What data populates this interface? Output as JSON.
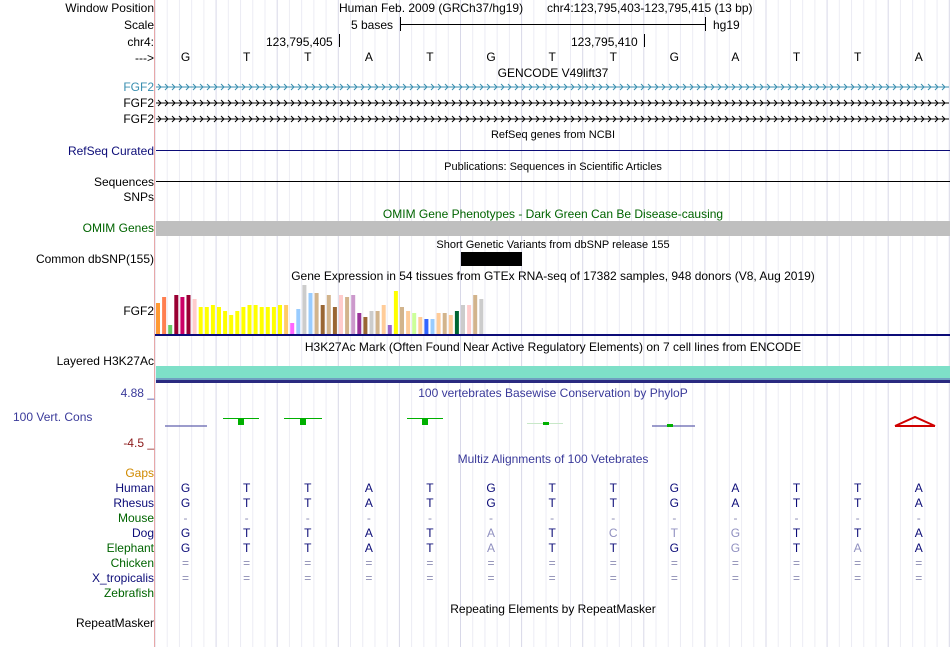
{
  "header": {
    "labels": {
      "window_position": "Window Position",
      "scale": "Scale",
      "chrom": "chr4:",
      "strand": "--->"
    },
    "assembly_text": "Human Feb. 2009 (GRCh37/hg19)",
    "position_text": "chr4:123,795,403-123,795,415 (13 bp)",
    "scale_text": "5 bases",
    "db_text": "hg19",
    "coord_1": "123,795,405",
    "coord_2": "123,795,410",
    "sequence": [
      "G",
      "T",
      "T",
      "A",
      "T",
      "G",
      "T",
      "T",
      "G",
      "A",
      "T",
      "T",
      "A"
    ]
  },
  "tracks": {
    "gencode": {
      "title": "GENCODE V49lift37",
      "genes": [
        "FGF2",
        "FGF2",
        "FGF2"
      ],
      "color_first": "#3a8fb0",
      "color": "#000000"
    },
    "refseq": {
      "title": "RefSeq genes from NCBI",
      "label": "RefSeq Curated",
      "color": "#0c0c78"
    },
    "publications": {
      "title": "Publications: Sequences in Scientific Articles",
      "label": "Sequences"
    },
    "snps": {
      "label": "SNPs"
    },
    "omim": {
      "title": "OMIM Gene Phenotypes - Dark Green Can Be Disease-causing",
      "label": "OMIM Genes",
      "color": "#006400",
      "bar_color": "#bfbfbf"
    },
    "dbsnp": {
      "title": "Short Genetic Variants from dbSNP release 155",
      "label": "Common dbSNP(155)"
    },
    "gtex": {
      "title": "Gene Expression in 54 tissues from GTEx RNA-seq of 17382 samples, 948 donors (V8, Aug 2019)",
      "gene": "FGF2",
      "tissue_colors": [
        "#ff9933",
        "#ff7f50",
        "#66cc66",
        "#990033",
        "#cc0066",
        "#990033",
        "#ffcccc",
        "#ffff00",
        "#ffff00",
        "#ffff00",
        "#ffff00",
        "#ffff00",
        "#ffff00",
        "#ffff00",
        "#ffff00",
        "#ffff00",
        "#ffff00",
        "#ffff00",
        "#ffff00",
        "#ffff00",
        "#ffff00",
        "#ffcc66",
        "#ff66ff",
        "#99ccff",
        "#cccccc",
        "#99ccff",
        "#d2b48c",
        "#996633",
        "#d2b48c",
        "#996633",
        "#ffcccc",
        "#d2b48c",
        "#cc99cc",
        "#993399",
        "#996633",
        "#cccccc",
        "#d2b48c",
        "#ffcc99",
        "#9966cc",
        "#ffff00",
        "#d2b48c",
        "#ffcc99",
        "#ccff99",
        "#ffcc99",
        "#3366ff",
        "#99ccff",
        "#ffcc99",
        "#d2b48c",
        "#ffcc99",
        "#006633",
        "#cccccc",
        "#ffcccc",
        "#d2b48c",
        "#cccccc"
      ]
    },
    "h3k27ac": {
      "title": "H3K27Ac Mark (Often Found Near Active Regulatory Elements) on 7 cell lines from ENCODE",
      "label": "Layered H3K27Ac",
      "band_color": "#7ee0c8",
      "line_color": "#2a2a80"
    },
    "phylop": {
      "title": "100 vertebrates Basewise Conservation by PhyloP",
      "label": "100 Vert. Cons",
      "max_label": "4.88 _",
      "min_label": "-4.5 _",
      "pos_color": "#00b000",
      "neg_color": "#d00000",
      "label_color": "#3a3a9a"
    },
    "multiz": {
      "title": "Multiz Alignments of 100 Vetebrates",
      "title_color": "#3a3a9a",
      "gaps_label": "Gaps",
      "gaps_color": "#d08a00",
      "species": [
        {
          "name": "Human",
          "bases": [
            "G",
            "T",
            "T",
            "A",
            "T",
            "G",
            "T",
            "T",
            "G",
            "A",
            "T",
            "T",
            "A"
          ]
        },
        {
          "name": "Rhesus",
          "bases": [
            "G",
            "T",
            "T",
            "A",
            "T",
            "G",
            "T",
            "T",
            "G",
            "A",
            "T",
            "T",
            "A"
          ]
        },
        {
          "name": "Mouse",
          "bases": [
            "-",
            "-",
            "-",
            "-",
            "-",
            "-",
            "-",
            "-",
            "-",
            "-",
            "-",
            "-",
            "-"
          ]
        },
        {
          "name": "Dog",
          "bases": [
            "G",
            "T",
            "T",
            "A",
            "T",
            "A",
            "T",
            "C",
            "T",
            "G",
            "T",
            "T",
            "A"
          ]
        },
        {
          "name": "Elephant",
          "bases": [
            "G",
            "T",
            "T",
            "A",
            "T",
            "A",
            "T",
            "T",
            "G",
            "G",
            "T",
            "A",
            "A"
          ]
        },
        {
          "name": "Chicken",
          "bases": [
            "=",
            "=",
            "=",
            "=",
            "=",
            "=",
            "=",
            "=",
            "=",
            "=",
            "=",
            "=",
            "="
          ]
        },
        {
          "name": "X_tropicalis",
          "bases": [
            "=",
            "=",
            "=",
            "=",
            "=",
            "=",
            "=",
            "=",
            "=",
            "=",
            "=",
            "=",
            "="
          ]
        },
        {
          "name": "Zebrafish",
          "bases": []
        }
      ],
      "name_colors": [
        "#0c0c78",
        "#0c0c78",
        "#006400",
        "#0c0c78",
        "#006400",
        "#006400",
        "#0c0c78",
        "#006400"
      ]
    },
    "repeatmasker": {
      "title": "Repeating Elements by RepeatMasker",
      "label": "RepeatMasker"
    }
  }
}
